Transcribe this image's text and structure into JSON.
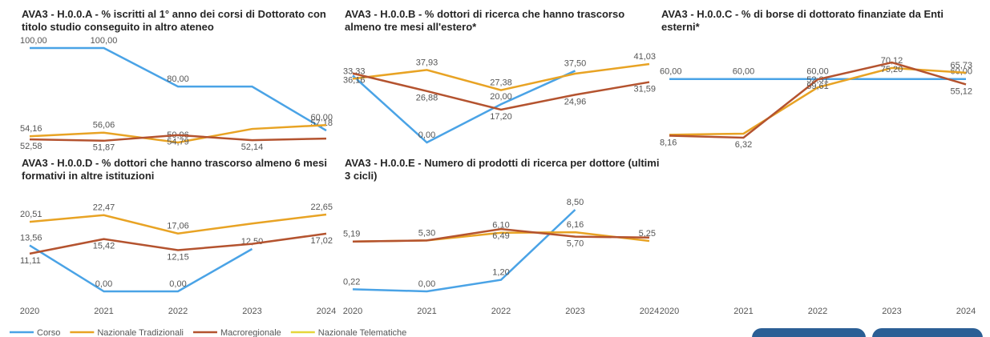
{
  "legend": [
    {
      "name": "Corso",
      "color": "#4aa3e6"
    },
    {
      "name": "Nazionale Tradizionali",
      "color": "#e8a324"
    },
    {
      "name": "Macroregionale",
      "color": "#b4532f"
    },
    {
      "name": "Nazionale Telematiche",
      "color": "#e6d63a"
    }
  ],
  "chart_data": [
    {
      "type": "line",
      "title": "AVA3 - H.0.0.A - % iscritti al 1° anno dei corsi di Dottorato con titolo studio conseguito in altro ateneo",
      "series": [
        {
          "values": [
            100,
            100,
            80,
            80,
            57.18
          ],
          "value_labels": [
            "100,00",
            "100,00",
            "80,00",
            null,
            "57,18"
          ]
        },
        {
          "values": [
            54.16,
            56.06,
            50.96,
            58,
            60
          ],
          "value_labels": [
            "54,16",
            "56,06",
            "50,96",
            null,
            "60,00"
          ]
        },
        {
          "values": [
            52.58,
            51.87,
            54.79,
            52.14,
            53
          ],
          "value_labels": [
            "52,58",
            "51,87",
            "54,79",
            "52,14",
            null
          ]
        }
      ]
    },
    {
      "type": "line",
      "title": "AVA3 - H.0.0.B - % dottori di ricerca che hanno trascorso almeno tre mesi all'estero*",
      "series": [
        {
          "values": [
            35,
            0,
            20,
            37.5,
            null
          ],
          "value_labels": [
            null,
            "0,00",
            "20,00",
            "37,50",
            null
          ]
        },
        {
          "values": [
            33.33,
            37.93,
            27.38,
            36,
            41.03
          ],
          "value_labels": [
            "33,33",
            "37,93",
            "27,38",
            null,
            "41,03"
          ]
        },
        {
          "values": [
            36.16,
            26.88,
            17.2,
            24.96,
            31.59
          ],
          "value_labels": [
            "36,16",
            "26,88",
            "17,20",
            "24,96",
            "31,59"
          ]
        }
      ]
    },
    {
      "type": "line",
      "title": "AVA3 - H.0.0.C - % di borse di dottorato finanziate da Enti esterni*",
      "categories": [
        "2020",
        "2021",
        "2022",
        "2023",
        "2024"
      ],
      "series": [
        {
          "values": [
            60,
            60,
            60,
            60,
            60
          ],
          "value_labels": [
            "60,00",
            "60,00",
            "60,00",
            null,
            "60,00"
          ]
        },
        {
          "values": [
            9,
            10,
            52.31,
            70.12,
            65.73
          ],
          "value_labels": [
            null,
            null,
            "52,31",
            "70,12",
            "65,73"
          ]
        },
        {
          "values": [
            8.16,
            6.32,
            59.61,
            75.2,
            55.12
          ],
          "value_labels": [
            "8,16",
            "6,32",
            "59,61",
            "75,20",
            "55,12"
          ]
        }
      ]
    },
    {
      "type": "line",
      "title": "AVA3 - H.0.0.D - % dottori che hanno trascorso almeno 6 mesi formativi in altre istituzioni",
      "categories": [
        "2020",
        "2021",
        "2022",
        "2023",
        "2024"
      ],
      "series": [
        {
          "values": [
            13.56,
            0,
            0,
            12.5,
            null
          ],
          "value_labels": [
            "13,56",
            "0,00",
            "0,00",
            "12,50",
            null
          ]
        },
        {
          "values": [
            20.51,
            22.47,
            17.06,
            20,
            22.65
          ],
          "value_labels": [
            "20,51",
            "22,47",
            "17,06",
            null,
            "22,65"
          ]
        },
        {
          "values": [
            11.11,
            15.42,
            12.15,
            14,
            17.02
          ],
          "value_labels": [
            "11,11",
            "15,42",
            "12,15",
            null,
            "17,02"
          ]
        }
      ]
    },
    {
      "type": "line",
      "title": "AVA3 - H.0.0.E - Numero di prodotti di ricerca per dottore (ultimi 3 cicli)",
      "categories": [
        "2020",
        "2021",
        "2022",
        "2023",
        "2024"
      ],
      "series": [
        {
          "values": [
            0.22,
            0,
            1.2,
            8.5,
            null
          ],
          "value_labels": [
            "0,22",
            "0,00",
            "1,20",
            "8,50",
            null
          ]
        },
        {
          "values": [
            5.19,
            5.3,
            6.1,
            6.16,
            5.25
          ],
          "value_labels": [
            "5,19",
            "5,30",
            "6,10",
            "6,16",
            "5,25"
          ]
        },
        {
          "values": [
            5.19,
            5.3,
            6.49,
            5.7,
            5.6
          ],
          "value_labels": [
            null,
            null,
            "6,49",
            "5,70",
            null
          ]
        }
      ]
    }
  ]
}
